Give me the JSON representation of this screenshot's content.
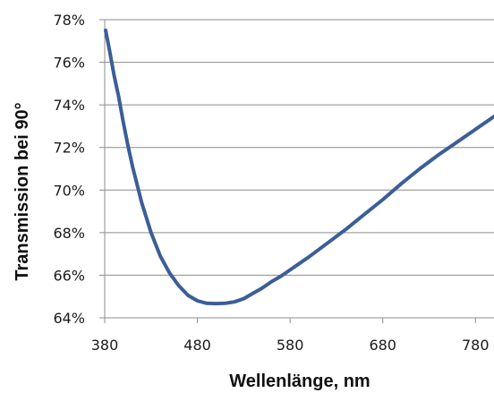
{
  "chart_data": {
    "type": "line",
    "title": "",
    "xlabel": "Wellenlänge, nm",
    "ylabel": "Transmission bei 90°",
    "xlim": [
      380,
      800
    ],
    "ylim": [
      64,
      78
    ],
    "x_ticks": [
      380,
      480,
      580,
      680,
      780
    ],
    "x_tick_labels": [
      "380",
      "480",
      "580",
      "680",
      "780"
    ],
    "y_ticks": [
      64,
      66,
      68,
      70,
      72,
      74,
      76,
      78
    ],
    "y_tick_labels": [
      "64%",
      "66%",
      "68%",
      "70%",
      "72%",
      "74%",
      "76%",
      "78%"
    ],
    "grid": "horizontal",
    "legend": "none",
    "series_color": "#3b5e98",
    "series": [
      {
        "x": [
          381,
          385,
          390,
          395,
          400,
          405,
          410,
          420,
          430,
          440,
          450,
          460,
          470,
          480,
          490,
          500,
          510,
          520,
          530,
          540,
          550,
          560,
          570,
          580,
          600,
          620,
          640,
          660,
          680,
          700,
          720,
          740,
          760,
          780,
          800
        ],
        "y": [
          77.5,
          76.6,
          75.4,
          74.4,
          73.2,
          72.1,
          71.1,
          69.4,
          68.0,
          66.9,
          66.1,
          65.5,
          65.05,
          64.8,
          64.68,
          64.67,
          64.68,
          64.75,
          64.9,
          65.15,
          65.4,
          65.7,
          65.95,
          66.25,
          66.85,
          67.5,
          68.15,
          68.85,
          69.55,
          70.3,
          71.0,
          71.65,
          72.25,
          72.85,
          73.45
        ]
      }
    ]
  }
}
